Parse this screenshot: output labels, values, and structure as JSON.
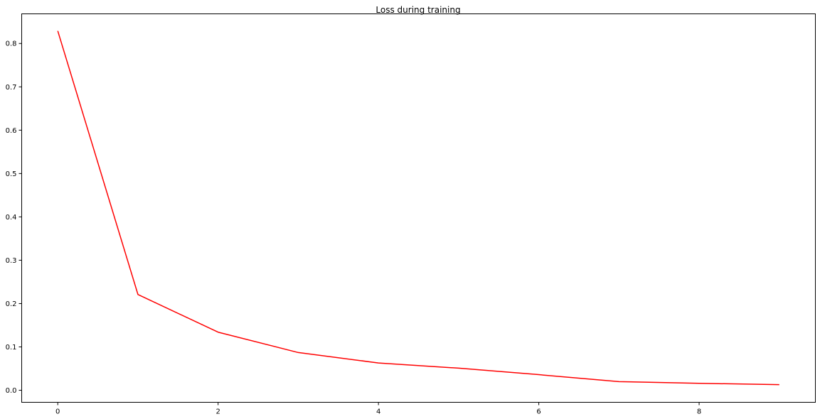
{
  "chart_data": {
    "type": "line",
    "title": "Loss during training",
    "xlabel": "",
    "ylabel": "",
    "xlim": [
      -0.45,
      9.45
    ],
    "ylim": [
      -0.0278,
      0.8684
    ],
    "x_ticks": [
      0,
      2,
      4,
      6,
      8
    ],
    "x_tick_labels": [
      "0",
      "2",
      "4",
      "6",
      "8"
    ],
    "y_ticks": [
      0.0,
      0.1,
      0.2,
      0.3,
      0.4,
      0.5,
      0.6,
      0.7,
      0.8
    ],
    "y_tick_labels": [
      "0.0",
      "0.1",
      "0.2",
      "0.3",
      "0.4",
      "0.5",
      "0.6",
      "0.7",
      "0.8"
    ],
    "grid": false,
    "legend": "none",
    "series": [
      {
        "color": "#ff0000",
        "x": [
          0,
          1,
          2,
          3,
          4,
          5,
          6,
          7,
          8,
          9
        ],
        "values": [
          0.829,
          0.221,
          0.134,
          0.087,
          0.063,
          0.051,
          0.036,
          0.02,
          0.016,
          0.013
        ]
      }
    ]
  }
}
